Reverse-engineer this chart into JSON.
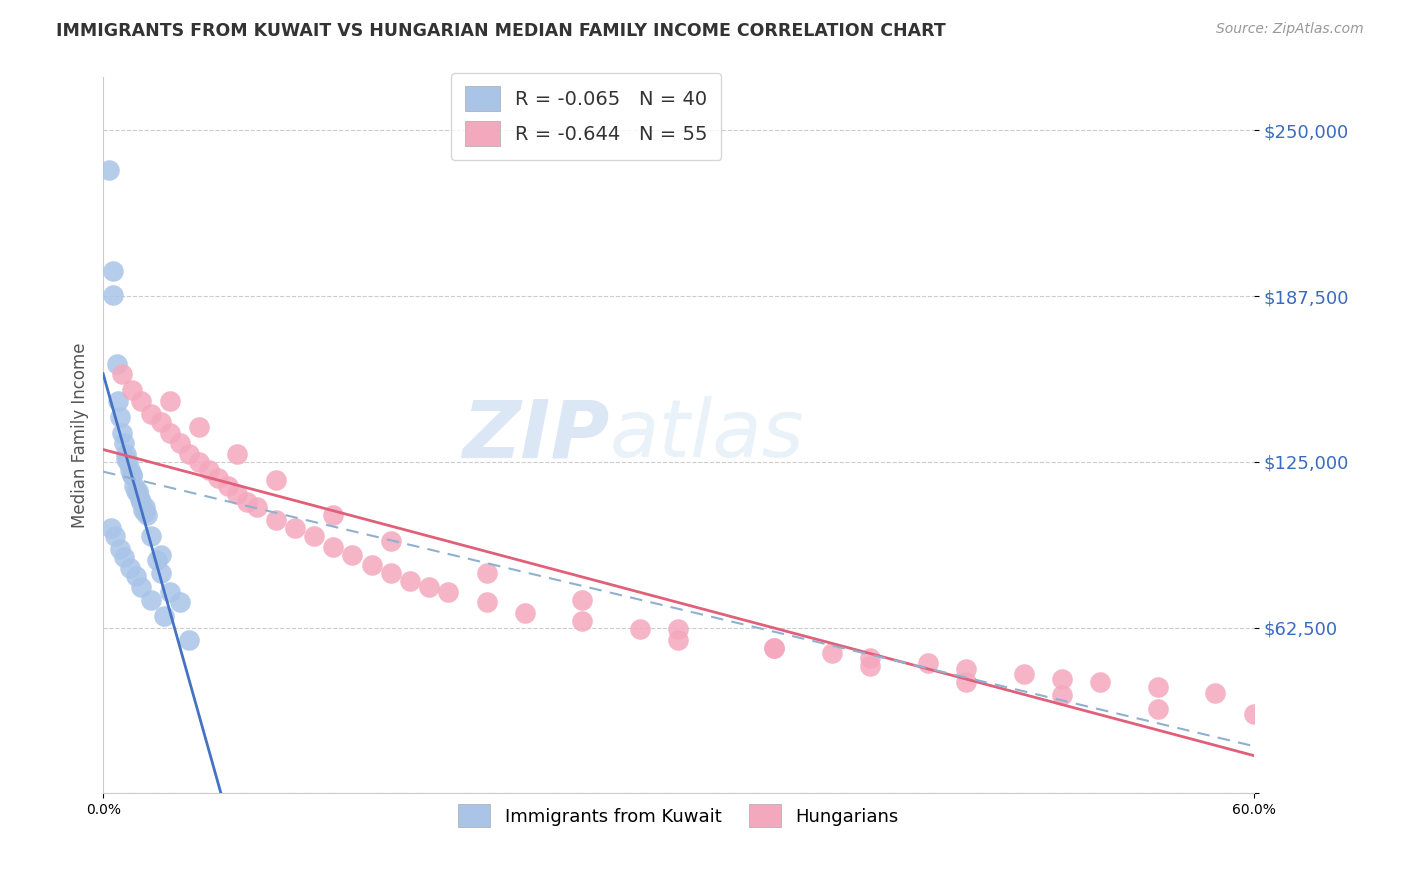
{
  "title": "IMMIGRANTS FROM KUWAIT VS HUNGARIAN MEDIAN FAMILY INCOME CORRELATION CHART",
  "source": "Source: ZipAtlas.com",
  "ylabel": "Median Family Income",
  "yticks": [
    0,
    62500,
    125000,
    187500,
    250000
  ],
  "ytick_labels": [
    "",
    "$62,500",
    "$125,000",
    "$187,500",
    "$250,000"
  ],
  "xlim": [
    0.0,
    60.0
  ],
  "ylim": [
    0,
    270000
  ],
  "legend1_label": "R = -0.065   N = 40",
  "legend2_label": "R = -0.644   N = 55",
  "legend_bottom1": "Immigrants from Kuwait",
  "legend_bottom2": "Hungarians",
  "blue_color": "#aac4e8",
  "pink_color": "#f4a8be",
  "blue_line_color": "#4472c4",
  "pink_line_color": "#e0607a",
  "dashed_line_color": "#90b0d0",
  "watermark_zip": "ZIP",
  "watermark_atlas": "atlas",
  "kuwait_x": [
    0.3,
    0.5,
    0.5,
    0.7,
    0.8,
    0.9,
    1.0,
    1.1,
    1.2,
    1.3,
    1.4,
    1.5,
    1.6,
    1.7,
    1.8,
    1.9,
    2.0,
    2.1,
    2.2,
    2.3,
    2.5,
    2.8,
    3.0,
    3.5,
    4.0,
    1.2,
    1.5,
    1.8,
    2.2,
    3.0,
    0.4,
    0.6,
    0.9,
    1.1,
    1.4,
    1.7,
    2.0,
    2.5,
    3.2,
    4.5
  ],
  "kuwait_y": [
    235000,
    197000,
    188000,
    162000,
    148000,
    142000,
    136000,
    132000,
    128000,
    125000,
    122000,
    120000,
    116000,
    114000,
    113000,
    111000,
    110000,
    107000,
    106000,
    105000,
    97000,
    88000,
    83000,
    76000,
    72000,
    126000,
    120000,
    114000,
    108000,
    90000,
    100000,
    97000,
    92000,
    89000,
    85000,
    82000,
    78000,
    73000,
    67000,
    58000
  ],
  "hungarian_x": [
    1.0,
    1.5,
    2.0,
    2.5,
    3.0,
    3.5,
    4.0,
    4.5,
    5.0,
    5.5,
    6.0,
    6.5,
    7.0,
    7.5,
    8.0,
    9.0,
    10.0,
    11.0,
    12.0,
    13.0,
    14.0,
    15.0,
    16.0,
    17.0,
    18.0,
    20.0,
    22.0,
    25.0,
    28.0,
    30.0,
    35.0,
    38.0,
    40.0,
    43.0,
    45.0,
    48.0,
    50.0,
    52.0,
    55.0,
    58.0,
    3.5,
    5.0,
    7.0,
    9.0,
    12.0,
    15.0,
    20.0,
    25.0,
    30.0,
    35.0,
    40.0,
    45.0,
    50.0,
    55.0,
    60.0
  ],
  "hungarian_y": [
    158000,
    152000,
    148000,
    143000,
    140000,
    136000,
    132000,
    128000,
    125000,
    122000,
    119000,
    116000,
    113000,
    110000,
    108000,
    103000,
    100000,
    97000,
    93000,
    90000,
    86000,
    83000,
    80000,
    78000,
    76000,
    72000,
    68000,
    65000,
    62000,
    58000,
    55000,
    53000,
    51000,
    49000,
    47000,
    45000,
    43000,
    42000,
    40000,
    38000,
    148000,
    138000,
    128000,
    118000,
    105000,
    95000,
    83000,
    73000,
    62000,
    55000,
    48000,
    42000,
    37000,
    32000,
    30000
  ]
}
